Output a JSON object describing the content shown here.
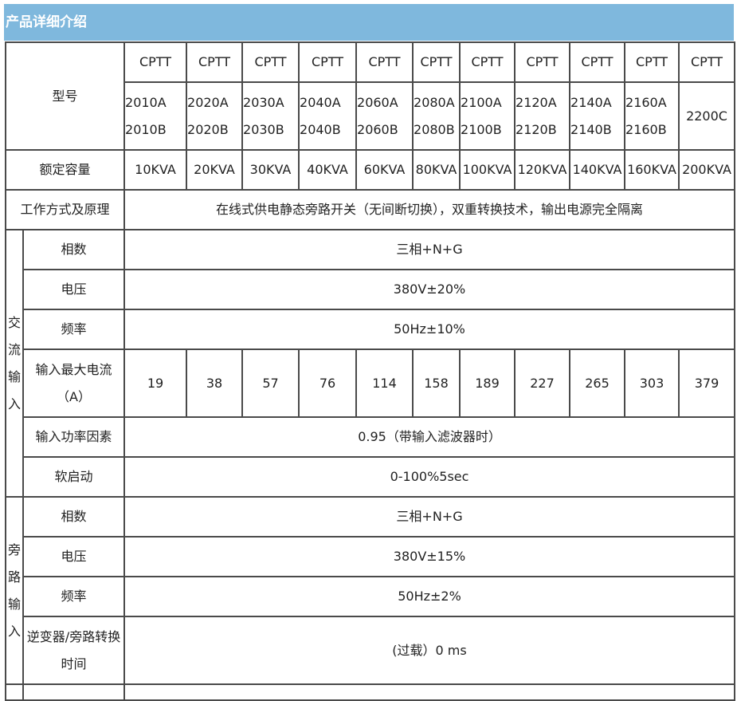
{
  "title": "产品详细介绍",
  "labels": {
    "model": "型号",
    "capacity": "额定容量",
    "mode": "工作方式及原理",
    "ac_group": "交流输入",
    "bypass_group": "旁路输入",
    "phase": "相数",
    "voltage": "电压",
    "freq": "频率",
    "max_current": "输入最大电流（A）",
    "pf": "输入功率因素",
    "soft_start": "软启动",
    "transfer": "逆变器/旁路转换时间"
  },
  "models": [
    {
      "series": "CPTT",
      "a": "2010A",
      "b": "2010B",
      "cap": "10KVA",
      "cur": "19"
    },
    {
      "series": "CPTT",
      "a": "2020A",
      "b": "2020B",
      "cap": "20KVA",
      "cur": "38"
    },
    {
      "series": "CPTT",
      "a": "2030A",
      "b": "2030B",
      "cap": "30KVA",
      "cur": "57"
    },
    {
      "series": "CPTT",
      "a": "2040A",
      "b": "2040B",
      "cap": "40KVA",
      "cur": "76"
    },
    {
      "series": "CPTT",
      "a": "2060A",
      "b": "2060B",
      "cap": "60KVA",
      "cur": "114"
    },
    {
      "series": "CPTT",
      "a": "2080A",
      "b": "2080B",
      "cap": "80KVA",
      "cur": "158"
    },
    {
      "series": "CPTT",
      "a": "2100A",
      "b": "2100B",
      "cap": "100KVA",
      "cur": "189"
    },
    {
      "series": "CPTT",
      "a": "2120A",
      "b": "2120B",
      "cap": "120KVA",
      "cur": "227"
    },
    {
      "series": "CPTT",
      "a": "2140A",
      "b": "2140B",
      "cap": "140KVA",
      "cur": "265"
    },
    {
      "series": "CPTT",
      "a": "2160A",
      "b": "2160B",
      "cap": "160KVA",
      "cur": "303"
    },
    {
      "series": "CPTT",
      "a": "2200C",
      "b": "",
      "cap": "200KVA",
      "cur": "379"
    }
  ],
  "values": {
    "mode": "在线式供电静态旁路开关（无间断切换），双重转换技术，输出电源完全隔离",
    "ac_phase": "三相+N+G",
    "ac_voltage": "380V±20%",
    "ac_freq": "50Hz±10%",
    "pf": "0.95（带输入滤波器时）",
    "soft_start": "0-100%5sec",
    "bp_phase": "三相+N+G",
    "bp_voltage": "380V±15%",
    "bp_freq": "50Hz±2%",
    "transfer": "(过载）0 ms"
  }
}
